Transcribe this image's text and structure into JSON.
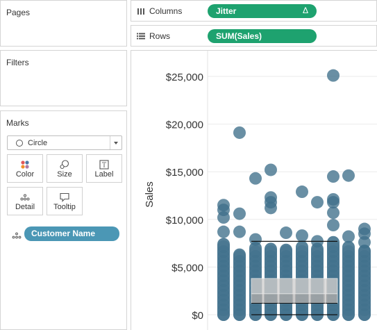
{
  "panels": {
    "pages": "Pages",
    "filters": "Filters",
    "marks": "Marks"
  },
  "marks": {
    "type": "Circle",
    "buttons": [
      "Color",
      "Size",
      "Label",
      "Detail",
      "Tooltip"
    ],
    "detail_field": "Customer Name"
  },
  "shelves": {
    "columns_label": "Columns",
    "columns_pill": "Jitter",
    "columns_pill_badge": "Δ",
    "rows_label": "Rows",
    "rows_pill": "SUM(Sales)"
  },
  "colors": {
    "mark": "#3f6f8b",
    "pill_green": "#1ea26f",
    "pill_blue": "#4b97b5",
    "axis_text": "#333333",
    "gridline": "#ebebeb"
  },
  "chart_data": {
    "type": "scatter",
    "ylabel": "Sales",
    "xlabel": "",
    "yticks": [
      0,
      5000,
      10000,
      15000,
      20000,
      25000
    ],
    "ytick_labels": [
      "$0",
      "$5,000",
      "$10,000",
      "$15,000",
      "$20,000",
      "$25,000"
    ],
    "ylim": [
      -500,
      27500
    ],
    "jitter_columns": [
      1,
      2,
      3,
      4,
      5,
      6,
      7,
      8,
      9,
      10
    ],
    "outliers": [
      {
        "x": 2,
        "y": 19100
      },
      {
        "x": 3,
        "y": 14300
      },
      {
        "x": 4,
        "y": 15200
      },
      {
        "x": 4,
        "y": 12300
      },
      {
        "x": 4,
        "y": 11800
      },
      {
        "x": 4,
        "y": 11200
      },
      {
        "x": 6,
        "y": 12900
      },
      {
        "x": 7,
        "y": 11800
      },
      {
        "x": 8,
        "y": 25100
      },
      {
        "x": 8,
        "y": 14500
      },
      {
        "x": 8,
        "y": 12100
      },
      {
        "x": 8,
        "y": 11800
      },
      {
        "x": 8,
        "y": 10700
      },
      {
        "x": 8,
        "y": 9400
      },
      {
        "x": 9,
        "y": 14600
      },
      {
        "x": 1,
        "y": 11500
      },
      {
        "x": 1,
        "y": 11000
      },
      {
        "x": 1,
        "y": 10200
      },
      {
        "x": 2,
        "y": 10600
      },
      {
        "x": 1,
        "y": 8700
      },
      {
        "x": 2,
        "y": 8700
      },
      {
        "x": 5,
        "y": 8600
      },
      {
        "x": 6,
        "y": 8300
      },
      {
        "x": 9,
        "y": 8200
      },
      {
        "x": 10,
        "y": 9000
      },
      {
        "x": 10,
        "y": 8500
      },
      {
        "x": 3,
        "y": 7900
      },
      {
        "x": 7,
        "y": 7700
      },
      {
        "x": 10,
        "y": 7600
      }
    ],
    "column_top": [
      7400,
      6300,
      7000,
      6900,
      6800,
      7100,
      6900,
      7600,
      7100,
      6700
    ],
    "boxplot": {
      "x_range": [
        3,
        8
      ],
      "q1": 1200,
      "median": 2200,
      "q3": 3800,
      "whisker_low": 0,
      "whisker_high": 7700
    }
  }
}
